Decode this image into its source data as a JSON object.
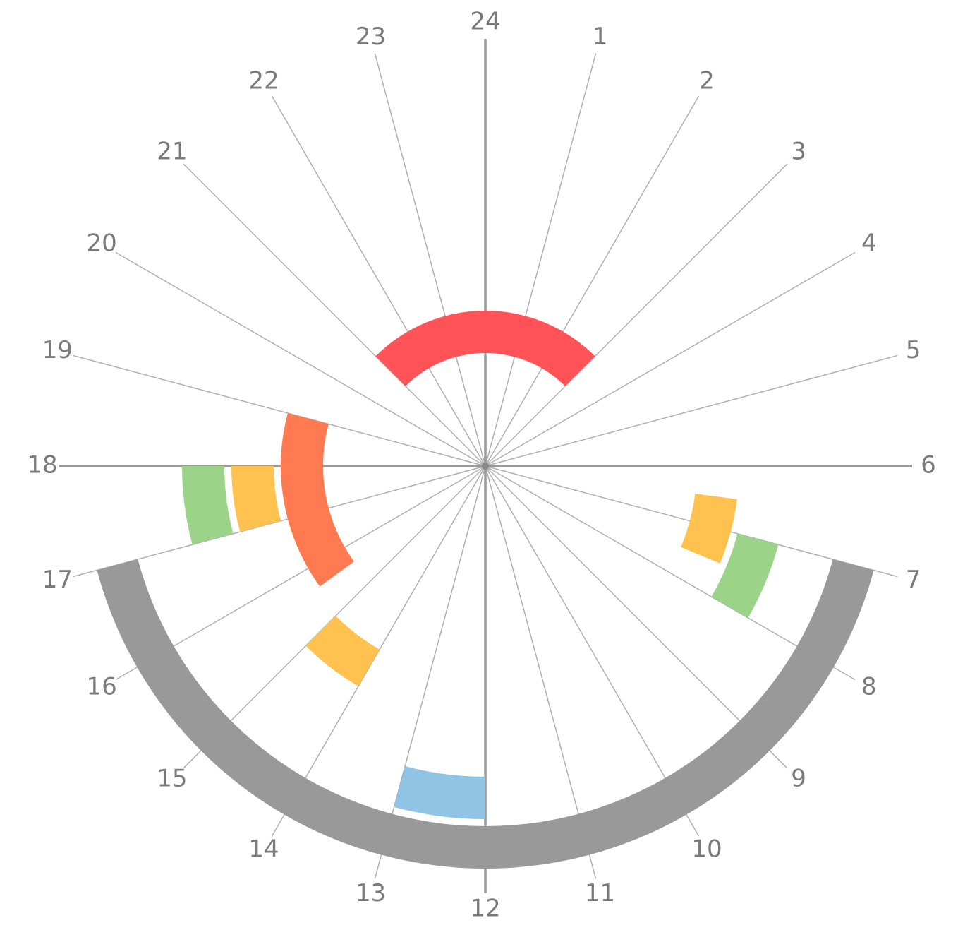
{
  "chart_data": {
    "type": "radial-clock",
    "categories": [
      "1",
      "2",
      "3",
      "4",
      "5",
      "6",
      "7",
      "8",
      "9",
      "10",
      "11",
      "12",
      "13",
      "14",
      "15",
      "16",
      "17",
      "18",
      "19",
      "20",
      "21",
      "22",
      "23",
      "24"
    ],
    "series": [
      {
        "color": "#ff5358",
        "values": [
          [
            21,
            3
          ]
        ]
      },
      {
        "color": "#ff7a50",
        "values": [
          [
            15.6,
            19
          ]
        ]
      },
      {
        "color": "#ffc24f",
        "values": [
          [
            17,
            18
          ],
          [
            6.5,
            7.5
          ],
          [
            14,
            15
          ]
        ]
      },
      {
        "color": "#9bd489",
        "values": [
          [
            17,
            18
          ],
          [
            7,
            8
          ]
        ]
      },
      {
        "color": "#8fc4e4",
        "values": [
          [
            12,
            13
          ]
        ]
      },
      {
        "color": "#999999",
        "values": [
          [
            7,
            17
          ]
        ]
      }
    ]
  }
}
